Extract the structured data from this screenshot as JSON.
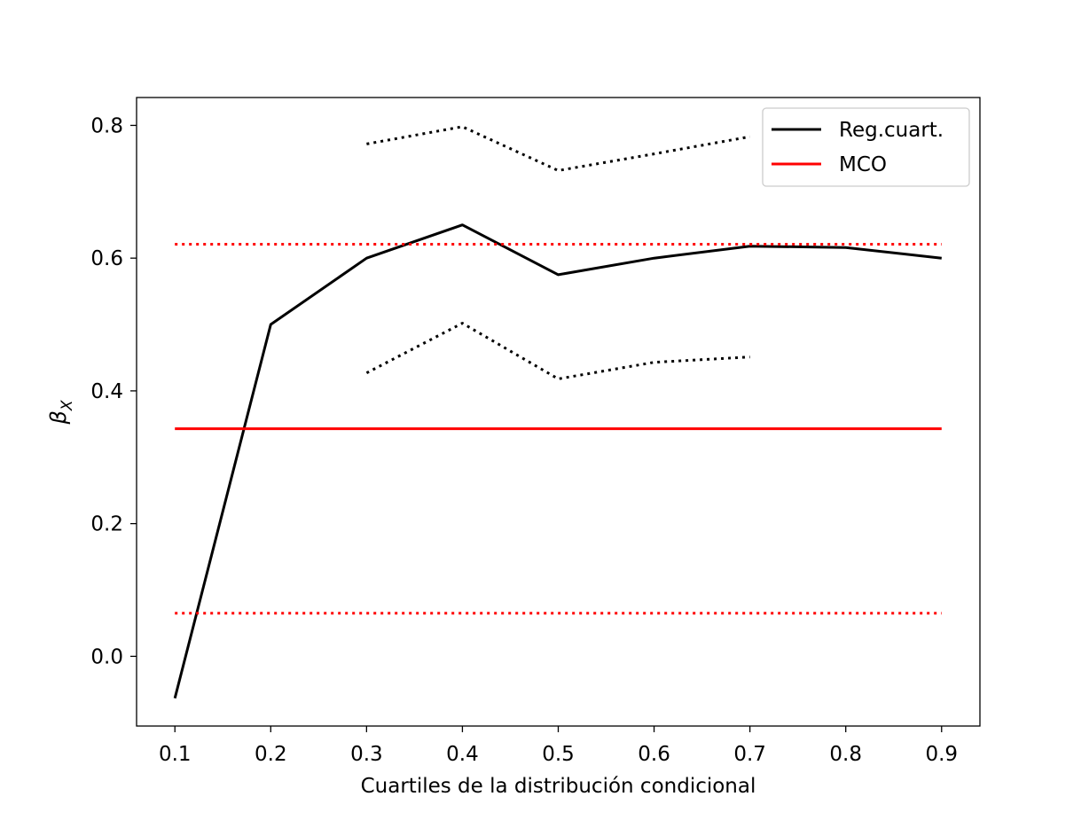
{
  "chart_data": {
    "type": "line",
    "title": "",
    "xlabel": "Cuartiles de la distribución condicional",
    "ylabel_symbol": "β",
    "ylabel_subscript": "X",
    "xlim": [
      0.06,
      0.94
    ],
    "ylim": [
      -0.105,
      0.842
    ],
    "xticks": [
      0.1,
      0.2,
      0.3,
      0.4,
      0.5,
      0.6,
      0.7,
      0.8,
      0.9
    ],
    "xtick_labels": [
      "0.1",
      "0.2",
      "0.3",
      "0.4",
      "0.5",
      "0.6",
      "0.7",
      "0.8",
      "0.9"
    ],
    "yticks": [
      0.0,
      0.2,
      0.4,
      0.6,
      0.8
    ],
    "ytick_labels": [
      "0.0",
      "0.2",
      "0.4",
      "0.6",
      "0.8"
    ],
    "grid": false,
    "legend_position": "top-right",
    "series": [
      {
        "name": "Reg.cuart.",
        "color": "#000000",
        "style": "solid",
        "x": [
          0.1,
          0.2,
          0.3,
          0.4,
          0.5,
          0.6,
          0.7,
          0.8,
          0.9
        ],
        "y": [
          -0.063,
          0.5,
          0.6,
          0.65,
          0.575,
          0.6,
          0.618,
          0.616,
          0.6
        ]
      },
      {
        "color": "#000000",
        "style": "dotted",
        "x": [
          0.3,
          0.4,
          0.5,
          0.6,
          0.7
        ],
        "y": [
          0.772,
          0.798,
          0.732,
          0.757,
          0.783
        ]
      },
      {
        "color": "#000000",
        "style": "dotted",
        "x": [
          0.3,
          0.4,
          0.5,
          0.6,
          0.7
        ],
        "y": [
          0.427,
          0.502,
          0.418,
          0.443,
          0.451
        ]
      },
      {
        "name": "MCO",
        "color": "#ff0000",
        "style": "solid",
        "x": [
          0.1,
          0.9
        ],
        "y": [
          0.343,
          0.343
        ]
      },
      {
        "color": "#ff0000",
        "style": "dotted",
        "x": [
          0.1,
          0.9
        ],
        "y": [
          0.621,
          0.621
        ]
      },
      {
        "color": "#ff0000",
        "style": "dotted",
        "x": [
          0.1,
          0.9
        ],
        "y": [
          0.065,
          0.065
        ]
      }
    ],
    "legend": [
      {
        "label": "Reg.cuart.",
        "color": "#000000"
      },
      {
        "label": "MCO",
        "color": "#ff0000"
      }
    ]
  }
}
